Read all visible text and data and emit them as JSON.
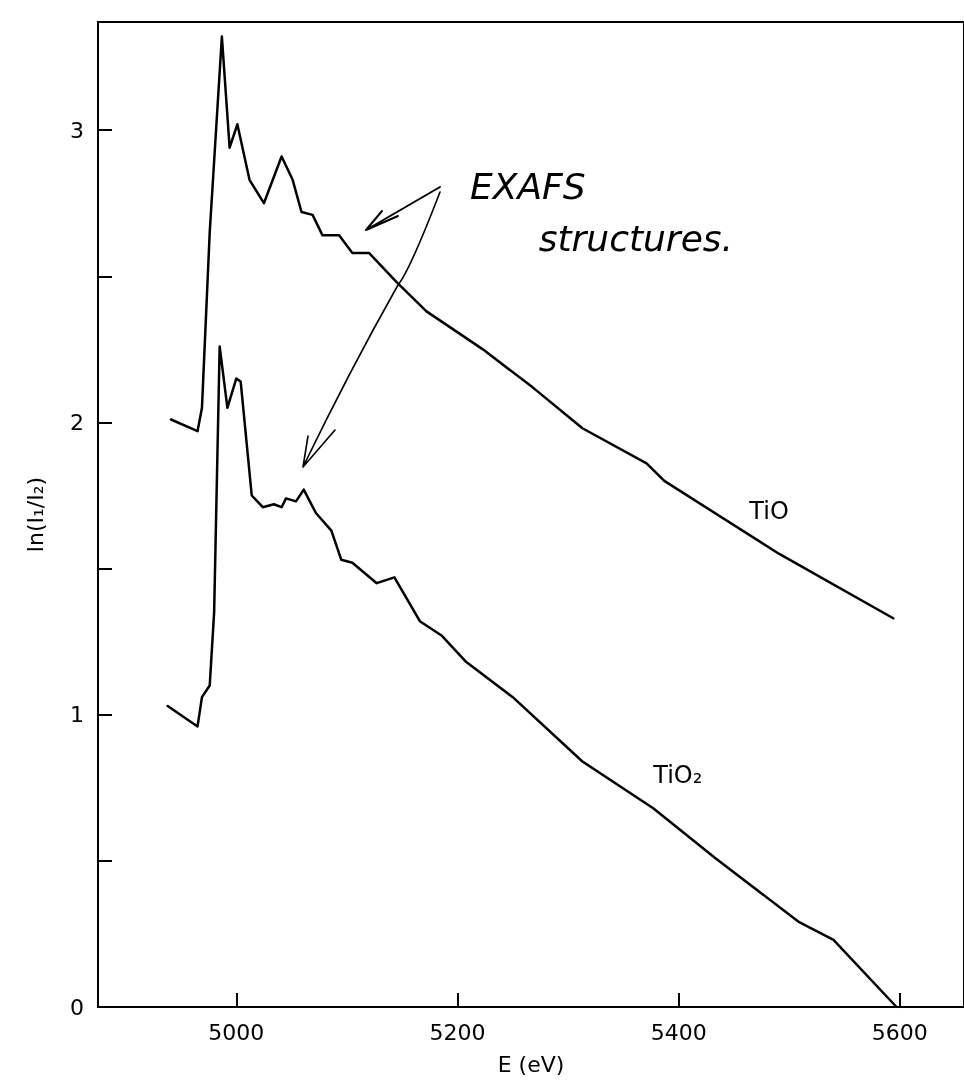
{
  "chart_data": {
    "type": "line",
    "xlabel": "E (eV)",
    "ylabel": "ln(I₁/I₂)",
    "xlim": [
      4875,
      5658
    ],
    "xticks": [
      5000,
      5200,
      5400,
      5600
    ],
    "ylim": [
      0,
      3.37
    ],
    "yticks": [
      0,
      {
        "value": 0.5,
        "label": null
      },
      1,
      {
        "value": 1.5,
        "label": null
      },
      2,
      {
        "value": 2.5,
        "label": null
      },
      3
    ],
    "grid": false,
    "legend": false,
    "marker": "none",
    "line_style": "solid",
    "annotations": [
      "EXAFS structures."
    ],
    "series": [
      {
        "name": "TiO",
        "color": "#000000",
        "x": [
          4941,
          4965,
          4969,
          4976,
          4987,
          4994,
          5001,
          5012,
          5025,
          5041,
          5051,
          5059,
          5069,
          5078,
          5093,
          5105,
          5120,
          5145,
          5172,
          5223,
          5268,
          5313,
          5371,
          5387,
          5491,
          5594
        ],
        "values": [
          2.01,
          1.97,
          2.05,
          2.65,
          3.32,
          2.94,
          3.02,
          2.83,
          2.75,
          2.91,
          2.83,
          2.72,
          2.71,
          2.64,
          2.64,
          2.58,
          2.58,
          2.48,
          2.38,
          2.25,
          2.12,
          1.98,
          1.86,
          1.8,
          1.55,
          1.33
        ]
      },
      {
        "name": "TiO₂",
        "color": "#000000",
        "x": [
          4938,
          4965,
          4969,
          4976,
          4980,
          4985,
          4992,
          5000,
          5004,
          5014,
          5024,
          5034,
          5041,
          5045,
          5054,
          5061,
          5072,
          5086,
          5095,
          5105,
          5127,
          5143,
          5166,
          5186,
          5208,
          5250,
          5313,
          5377,
          5433,
          5509,
          5540,
          5597
        ],
        "values": [
          1.03,
          0.96,
          1.06,
          1.1,
          1.35,
          2.26,
          2.05,
          2.15,
          2.14,
          1.75,
          1.71,
          1.72,
          1.71,
          1.74,
          1.73,
          1.77,
          1.69,
          1.63,
          1.53,
          1.52,
          1.45,
          1.47,
          1.32,
          1.27,
          1.18,
          1.06,
          0.84,
          0.68,
          0.51,
          0.29,
          0.23,
          0
        ]
      }
    ]
  }
}
